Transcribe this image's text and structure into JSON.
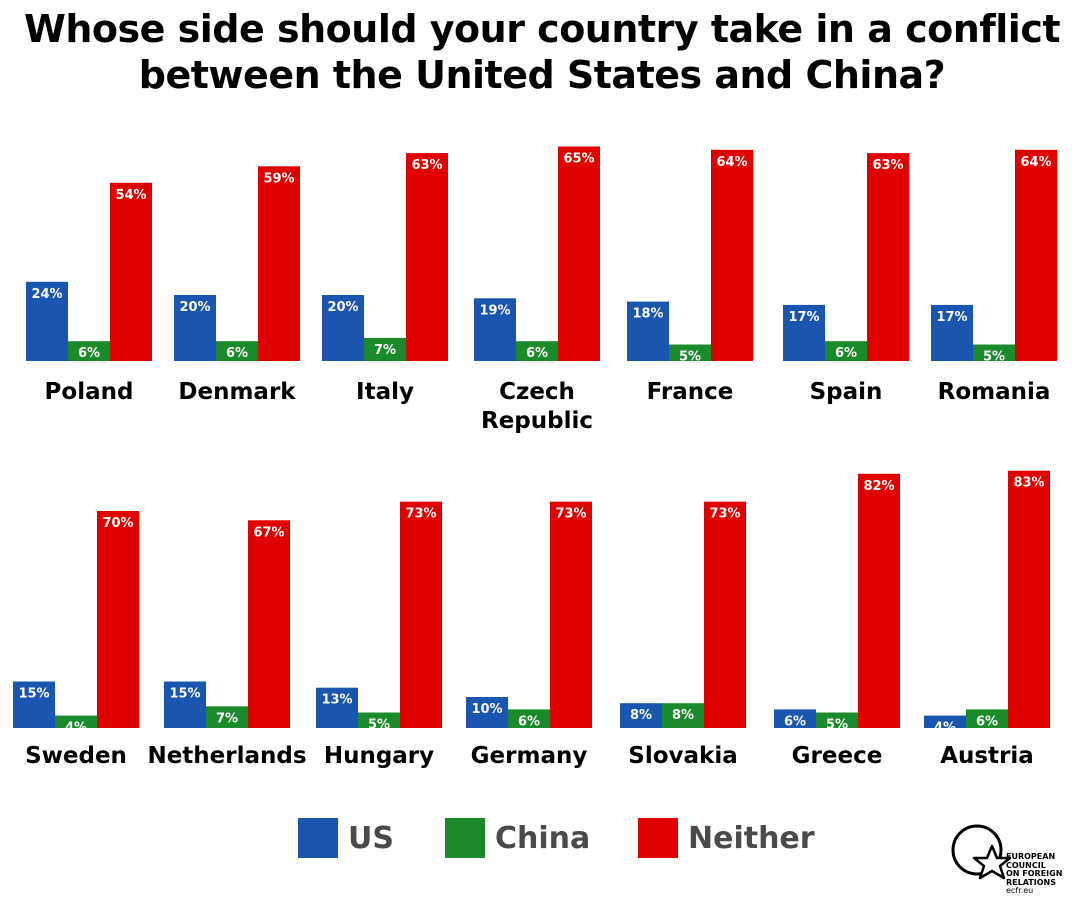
{
  "title_lines": [
    "Whose side should your country take in a conflict",
    "between the United States and China?"
  ],
  "chart_data": {
    "type": "bar",
    "title": "Whose side should your country take in a conflict between the United States and China?",
    "series": [
      {
        "name": "US",
        "color": "#1a55b0"
      },
      {
        "name": "China",
        "color": "#1a8a2a"
      },
      {
        "name": "Neither",
        "color": "#e00000"
      }
    ],
    "rows": [
      [
        {
          "country": [
            "Poland"
          ],
          "values": [
            24,
            6,
            54
          ]
        },
        {
          "country": [
            "Denmark"
          ],
          "values": [
            20,
            6,
            59
          ]
        },
        {
          "country": [
            "Italy"
          ],
          "values": [
            20,
            7,
            63
          ]
        },
        {
          "country": [
            "Czech",
            "Republic"
          ],
          "values": [
            19,
            6,
            65
          ]
        },
        {
          "country": [
            "France"
          ],
          "values": [
            18,
            5,
            64
          ]
        },
        {
          "country": [
            "Spain"
          ],
          "values": [
            17,
            6,
            63
          ]
        },
        {
          "country": [
            "Romania"
          ],
          "values": [
            17,
            5,
            64
          ]
        }
      ],
      [
        {
          "country": [
            "Sweden"
          ],
          "values": [
            15,
            4,
            70
          ]
        },
        {
          "country": [
            "Netherlands"
          ],
          "values": [
            15,
            7,
            67
          ]
        },
        {
          "country": [
            "Hungary"
          ],
          "values": [
            13,
            5,
            73
          ]
        },
        {
          "country": [
            "Germany"
          ],
          "values": [
            10,
            6,
            73
          ]
        },
        {
          "country": [
            "Slovakia"
          ],
          "values": [
            8,
            8,
            73
          ]
        },
        {
          "country": [
            "Greece"
          ],
          "values": [
            6,
            5,
            82
          ]
        },
        {
          "country": [
            "Austria"
          ],
          "values": [
            4,
            6,
            83
          ]
        }
      ]
    ],
    "value_suffix": "%",
    "legend_position": "bottom"
  },
  "logo": {
    "lines": [
      "EUROPEAN",
      "COUNCIL",
      "ON FOREIGN",
      "RELATIONS"
    ],
    "url": "ecfr.eu"
  }
}
